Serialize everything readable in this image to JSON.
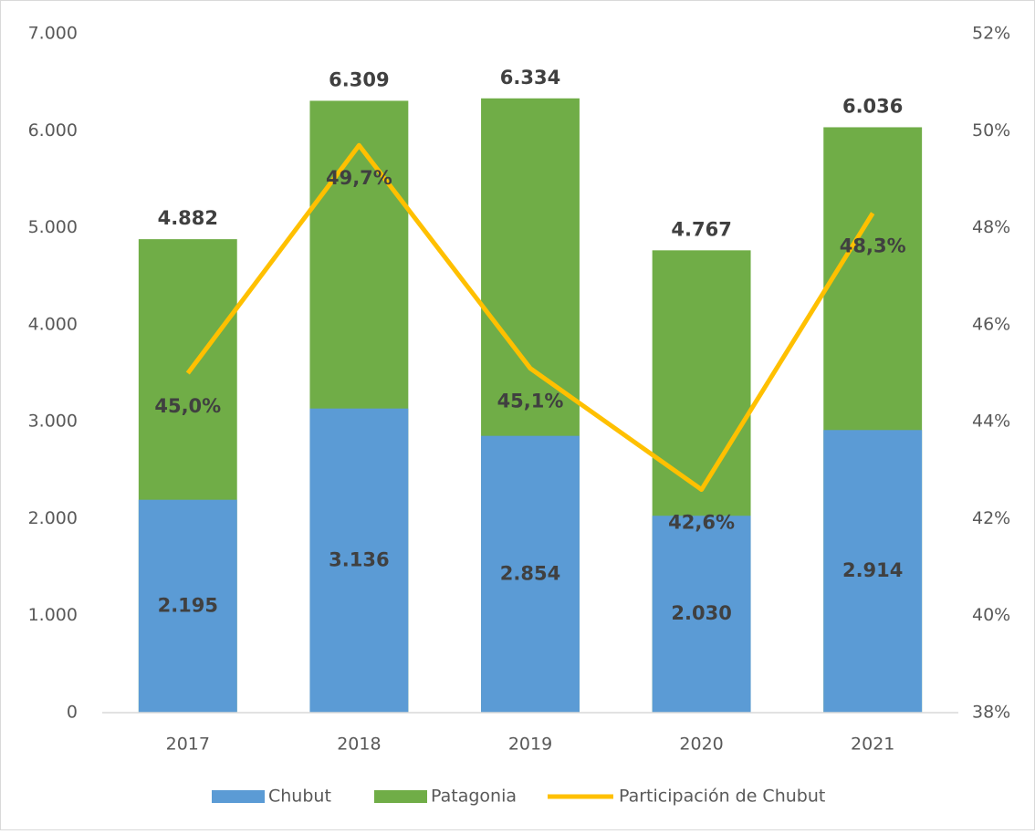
{
  "chart_data": {
    "type": "bar",
    "categories": [
      "2017",
      "2018",
      "2019",
      "2020",
      "2021"
    ],
    "series": [
      {
        "name": "Patagonia",
        "color": "#70ad47",
        "values": [
          4882,
          6309,
          6334,
          4767,
          6036
        ],
        "value_labels": [
          "4.882",
          "6.309",
          "6.334",
          "4.767",
          "6.036"
        ]
      },
      {
        "name": "Chubut",
        "color": "#5b9bd5",
        "values": [
          2195,
          3136,
          2854,
          2030,
          2914
        ],
        "value_labels": [
          "2.195",
          "3.136",
          "2.854",
          "2.030",
          "2.914"
        ]
      },
      {
        "name": "Participación de Chubut",
        "type": "line",
        "axis": "y2",
        "color": "#ffc000",
        "values": [
          45.0,
          49.7,
          45.1,
          42.6,
          48.3
        ],
        "value_labels": [
          "45,0%",
          "49,7%",
          "45,1%",
          "42,6%",
          "48,3%"
        ]
      }
    ],
    "legend_order": [
      "Chubut",
      "Patagonia",
      "Participación de Chubut"
    ],
    "ylim": [
      0,
      7000
    ],
    "yticks": [
      0,
      {
        "value": 1000,
        "label": "1.000"
      },
      {
        "value": 2000,
        "label": "2.000"
      },
      {
        "value": 3000,
        "label": "3.000"
      },
      {
        "value": 4000,
        "label": "4.000"
      },
      {
        "value": 5000,
        "label": "5.000"
      },
      {
        "value": 6000,
        "label": "6.000"
      },
      {
        "value": 7000,
        "label": "7.000"
      }
    ],
    "y2lim": [
      38,
      52
    ],
    "y2ticks": [
      {
        "value": 38,
        "label": "38%"
      },
      {
        "value": 40,
        "label": "40%"
      },
      {
        "value": 42,
        "label": "42%"
      },
      {
        "value": 44,
        "label": "44%"
      },
      {
        "value": 46,
        "label": "46%"
      },
      {
        "value": 48,
        "label": "48%"
      },
      {
        "value": 50,
        "label": "50%"
      },
      {
        "value": 52,
        "label": "52%"
      }
    ],
    "grid": false,
    "legend": "bottom"
  }
}
